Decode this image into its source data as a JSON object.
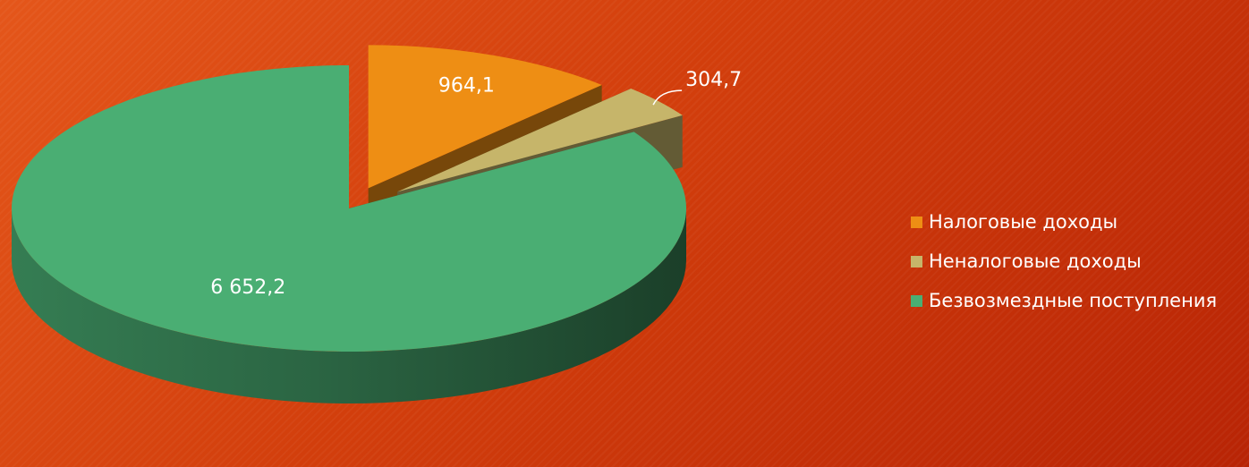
{
  "chart_data": {
    "type": "pie",
    "style": "3d-exploded",
    "categories": [
      "Налоговые доходы",
      "Неналоговые доходы",
      "Безвозмездные поступления"
    ],
    "values": [
      964.1,
      304.7,
      6652.2
    ],
    "data_labels": [
      "964,1",
      "304,7",
      "6 652,2"
    ],
    "colors": [
      "#ee8e14",
      "#c6b56a",
      "#4aae73"
    ],
    "legend_position": "right"
  }
}
